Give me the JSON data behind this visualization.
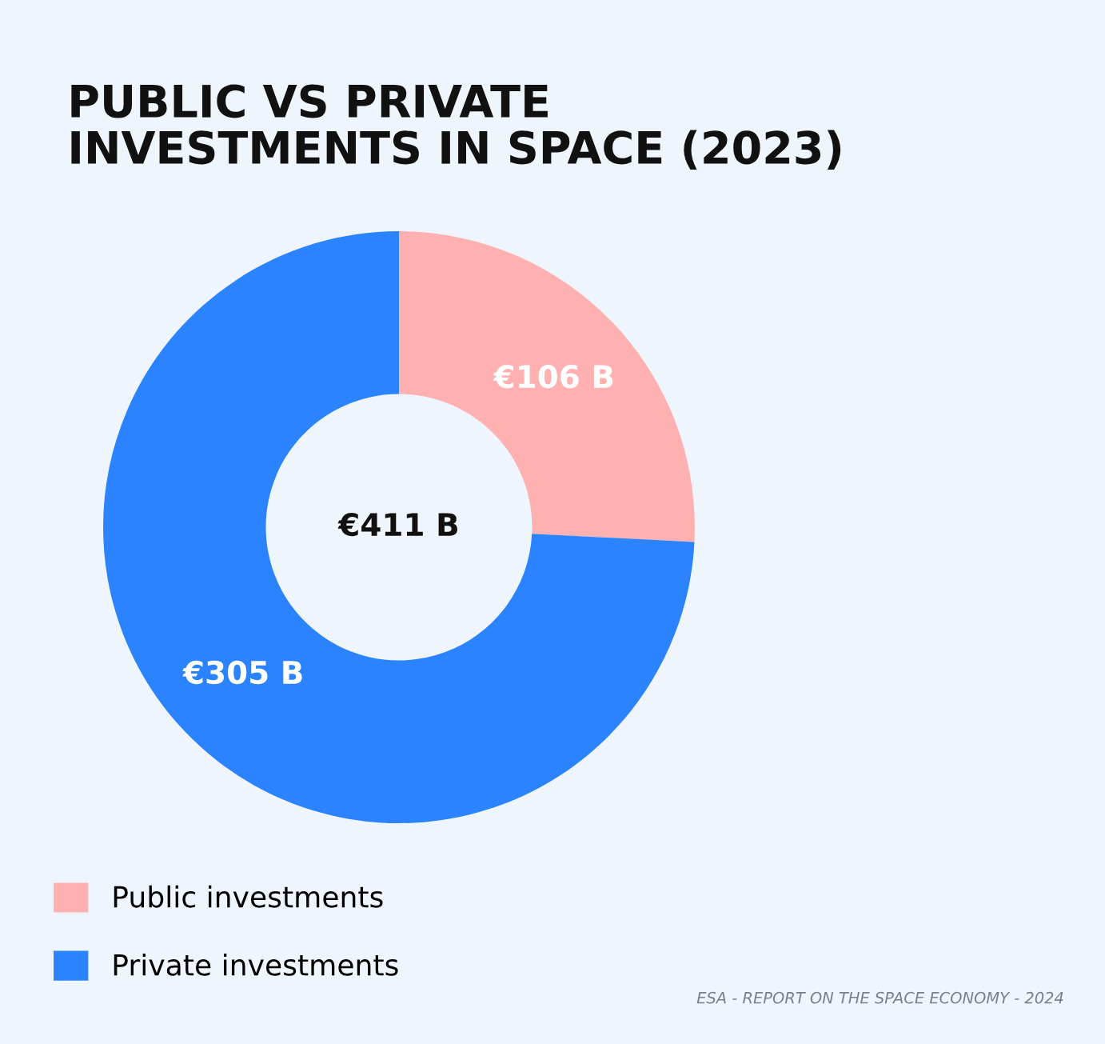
{
  "chart_data": {
    "type": "donut",
    "title": "PUBLIC VS PRIVATE\nINVESTMENTS IN SPACE (2023)",
    "categories": [
      "Public investments",
      "Private investments"
    ],
    "values": [
      106,
      305
    ],
    "colors": [
      "#ffb0b0",
      "#2b83ff"
    ],
    "value_labels": [
      "€106 B",
      "€305 B"
    ],
    "legend": "bottom left",
    "annotations": [
      "€411 B",
      "ESA - REPORT ON THE SPACE ECONOMY - 2024"
    ]
  }
}
